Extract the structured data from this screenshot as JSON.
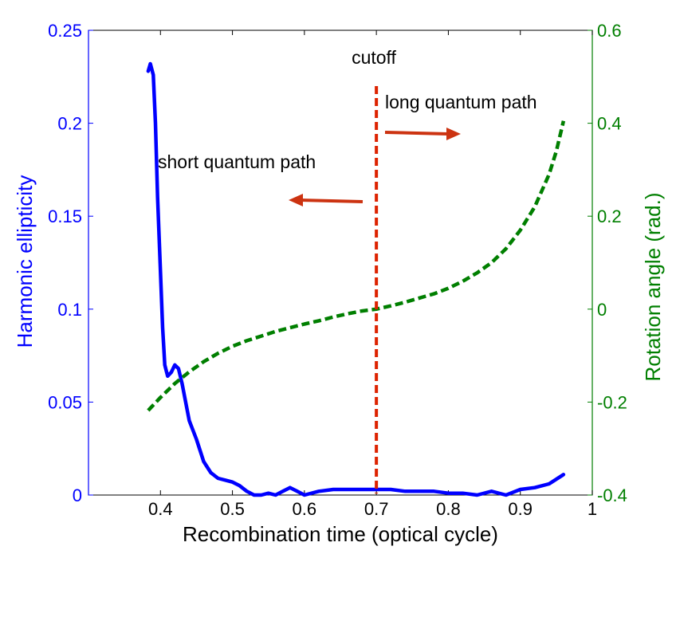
{
  "chart_data": {
    "type": "line",
    "title": "",
    "xlabel": "Recombination time (optical cycle)",
    "ylabel_left": "Harmonic ellipticity",
    "ylabel_right": "Rotation angle (rad.)",
    "xlim": [
      0.3,
      1.0
    ],
    "ylim_left": [
      0,
      0.25
    ],
    "ylim_right": [
      -0.4,
      0.6
    ],
    "x_ticks": [
      0.4,
      0.5,
      0.6,
      0.7,
      0.8,
      0.9,
      1.0
    ],
    "x_tick_labels": [
      "0.4",
      "0.5",
      "0.6",
      "0.7",
      "0.8",
      "0.9",
      "1"
    ],
    "y_left_ticks": [
      0,
      0.05,
      0.1,
      0.15,
      0.2,
      0.25
    ],
    "y_left_tick_labels": [
      "0",
      "0.05",
      "0.1",
      "0.15",
      "0.2",
      "0.25"
    ],
    "y_right_ticks": [
      -0.4,
      -0.2,
      0,
      0.2,
      0.4,
      0.6
    ],
    "y_right_tick_labels": [
      "-0.4",
      "-0.2",
      "0",
      "0.2",
      "0.4",
      "0.6"
    ],
    "grid": false,
    "colors": {
      "left_axis": "#0000ff",
      "right_axis": "#007f00",
      "cutoff": "#dd2200",
      "arrow": "#cc3311"
    },
    "series": [
      {
        "name": "Harmonic ellipticity",
        "axis": "left",
        "style": "solid",
        "color": "#0000ff",
        "x": [
          0.383,
          0.386,
          0.39,
          0.393,
          0.396,
          0.4,
          0.403,
          0.406,
          0.41,
          0.415,
          0.42,
          0.425,
          0.43,
          0.435,
          0.44,
          0.45,
          0.46,
          0.47,
          0.48,
          0.49,
          0.5,
          0.51,
          0.52,
          0.53,
          0.54,
          0.55,
          0.56,
          0.57,
          0.58,
          0.59,
          0.6,
          0.62,
          0.64,
          0.66,
          0.68,
          0.7,
          0.72,
          0.74,
          0.76,
          0.78,
          0.8,
          0.82,
          0.84,
          0.86,
          0.88,
          0.9,
          0.92,
          0.94,
          0.96
        ],
        "values": [
          0.228,
          0.232,
          0.226,
          0.2,
          0.16,
          0.12,
          0.09,
          0.07,
          0.064,
          0.066,
          0.07,
          0.068,
          0.06,
          0.05,
          0.04,
          0.03,
          0.018,
          0.012,
          0.009,
          0.008,
          0.007,
          0.005,
          0.002,
          0.0,
          0.0,
          0.001,
          0.0,
          0.002,
          0.004,
          0.002,
          0.0,
          0.002,
          0.003,
          0.003,
          0.003,
          0.003,
          0.003,
          0.002,
          0.002,
          0.002,
          0.001,
          0.001,
          0.0,
          0.002,
          0.0,
          0.003,
          0.004,
          0.006,
          0.011
        ]
      },
      {
        "name": "Rotation angle",
        "axis": "right",
        "style": "dashed",
        "color": "#007f00",
        "x": [
          0.383,
          0.4,
          0.42,
          0.44,
          0.46,
          0.48,
          0.5,
          0.52,
          0.54,
          0.56,
          0.58,
          0.6,
          0.62,
          0.64,
          0.66,
          0.68,
          0.7,
          0.72,
          0.74,
          0.76,
          0.78,
          0.8,
          0.82,
          0.84,
          0.86,
          0.88,
          0.9,
          0.92,
          0.94,
          0.95,
          0.96
        ],
        "values": [
          -0.218,
          -0.19,
          -0.16,
          -0.135,
          -0.113,
          -0.095,
          -0.08,
          -0.068,
          -0.058,
          -0.048,
          -0.04,
          -0.032,
          -0.025,
          -0.017,
          -0.01,
          -0.004,
          0.0,
          0.007,
          0.015,
          0.024,
          0.033,
          0.045,
          0.06,
          0.078,
          0.1,
          0.13,
          0.17,
          0.22,
          0.29,
          0.34,
          0.405
        ]
      }
    ],
    "cutoff": {
      "x": 0.7,
      "label": "cutoff"
    },
    "annotations": {
      "short_path": "short quantum path",
      "long_path": "long quantum path"
    }
  }
}
